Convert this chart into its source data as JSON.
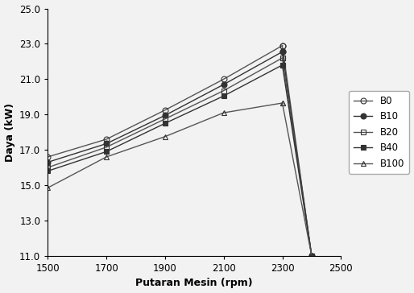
{
  "rpm": [
    1500,
    1700,
    1900,
    2100,
    2300,
    2400
  ],
  "B0": [
    16.6,
    17.6,
    19.25,
    21.0,
    22.9,
    11.0
  ],
  "B10": [
    16.3,
    17.35,
    18.95,
    20.7,
    22.55,
    11.0
  ],
  "B20": [
    16.0,
    17.15,
    18.75,
    20.35,
    22.2,
    11.0
  ],
  "B40": [
    15.8,
    16.9,
    18.5,
    20.05,
    21.8,
    11.0
  ],
  "B100": [
    14.85,
    16.6,
    17.75,
    19.1,
    19.65,
    11.0
  ],
  "xlabel": "Putaran Mesin (rpm)",
  "ylabel": "Daya (kW)",
  "xlim": [
    1500,
    2500
  ],
  "ylim": [
    11.0,
    25.0
  ],
  "xticks": [
    1500,
    1700,
    1900,
    2100,
    2300,
    2500
  ],
  "yticks": [
    11.0,
    13.0,
    15.0,
    17.0,
    19.0,
    21.0,
    23.0,
    25.0
  ],
  "bg_color": "#f0f0f0"
}
